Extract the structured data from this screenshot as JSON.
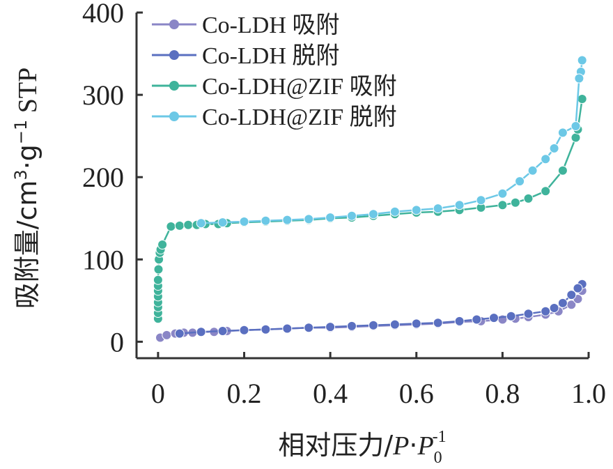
{
  "chart_data": {
    "type": "line",
    "ylabel": {
      "main": "吸附量/cm",
      "sup1": "3",
      "mid": "·g",
      "sup2": "−1",
      "tail": " STP"
    },
    "xlabel": {
      "main": "相对压力/",
      "p1": "P",
      "dot": "·",
      "p2": "P",
      "sub": "0",
      "sup": "-1"
    },
    "x_ticks": [
      "0",
      "0.2",
      "0.4",
      "0.6",
      "0.8",
      "1.0"
    ],
    "y_ticks": [
      "0",
      "100",
      "200",
      "300",
      "400"
    ],
    "xlim": [
      -0.05,
      1.0
    ],
    "ylim": [
      -20,
      400
    ],
    "legend_position": "top-left",
    "series": [
      {
        "name": "Co-LDH 吸附",
        "color": "#8a86c6",
        "x": [
          0.005,
          0.02,
          0.04,
          0.06,
          0.08,
          0.1,
          0.13,
          0.16,
          0.2,
          0.25,
          0.3,
          0.35,
          0.4,
          0.45,
          0.5,
          0.55,
          0.6,
          0.65,
          0.7,
          0.75,
          0.8,
          0.83,
          0.86,
          0.9,
          0.93,
          0.96,
          0.975,
          0.985
        ],
        "y": [
          5,
          8,
          10,
          11,
          11,
          12,
          12,
          13,
          14,
          15,
          16,
          17,
          17,
          18,
          19,
          20,
          21,
          22,
          24,
          25,
          27,
          28,
          30,
          33,
          37,
          45,
          52,
          62
        ]
      },
      {
        "name": "Co-LDH 脱附",
        "color": "#5a6fc0",
        "x": [
          0.985,
          0.975,
          0.96,
          0.94,
          0.92,
          0.9,
          0.86,
          0.82,
          0.78,
          0.74,
          0.7,
          0.65,
          0.6,
          0.55,
          0.5,
          0.45,
          0.4,
          0.35,
          0.3,
          0.25,
          0.2,
          0.15,
          0.1,
          0.05
        ],
        "y": [
          70,
          65,
          57,
          47,
          41,
          37,
          34,
          31,
          29,
          27,
          25,
          23,
          22,
          21,
          20,
          19,
          18,
          17,
          16,
          15,
          14,
          13,
          12,
          10
        ]
      },
      {
        "name": "Co-LDH@ZIF 吸附",
        "color": "#3fb39b",
        "x": [
          0.0,
          0.0,
          0.0,
          0.0,
          0.0,
          0.0,
          0.0,
          0.0,
          0.001,
          0.002,
          0.004,
          0.006,
          0.01,
          0.03,
          0.05,
          0.07,
          0.09,
          0.11,
          0.14,
          0.16,
          0.2,
          0.25,
          0.3,
          0.35,
          0.4,
          0.45,
          0.5,
          0.55,
          0.6,
          0.65,
          0.7,
          0.75,
          0.8,
          0.83,
          0.86,
          0.9,
          0.94,
          0.97,
          0.975,
          0.985
        ],
        "y": [
          28,
          35,
          42,
          48,
          55,
          62,
          68,
          75,
          88,
          100,
          108,
          112,
          118,
          140,
          141,
          142,
          142,
          143,
          143,
          144,
          145,
          146,
          147,
          148,
          150,
          151,
          153,
          155,
          157,
          158,
          160,
          163,
          166,
          169,
          174,
          183,
          208,
          248,
          258,
          295
        ]
      },
      {
        "name": "Co-LDH@ZIF 脱附",
        "color": "#6cc8e6",
        "x": [
          0.985,
          0.982,
          0.978,
          0.97,
          0.94,
          0.92,
          0.9,
          0.87,
          0.84,
          0.8,
          0.75,
          0.7,
          0.65,
          0.6,
          0.55,
          0.5,
          0.45,
          0.4,
          0.35,
          0.3,
          0.25,
          0.2,
          0.15,
          0.1
        ],
        "y": [
          342,
          328,
          320,
          262,
          254,
          235,
          222,
          208,
          195,
          180,
          172,
          166,
          162,
          160,
          158,
          155,
          153,
          151,
          149,
          148,
          147,
          146,
          145,
          144
        ]
      }
    ]
  }
}
